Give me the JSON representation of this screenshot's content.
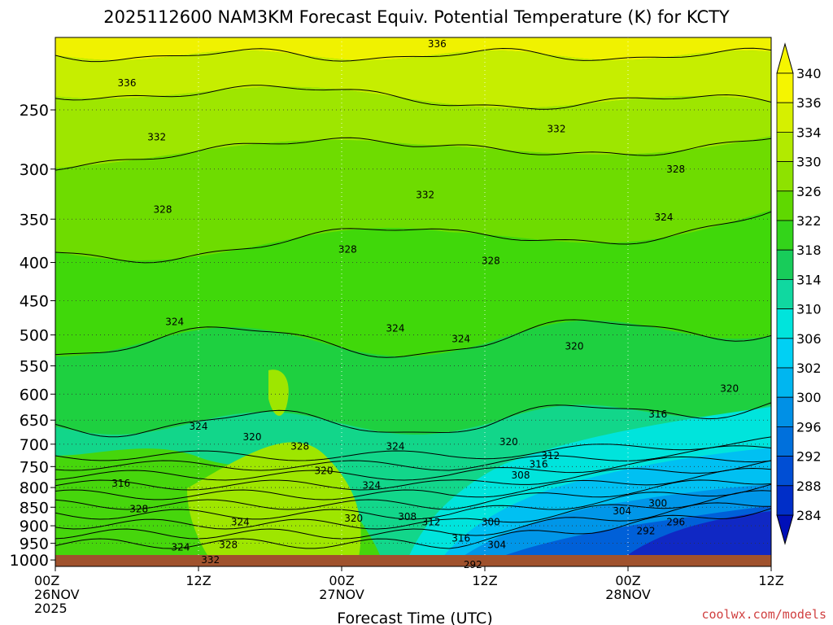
{
  "chart_data": {
    "type": "heatmap",
    "title": "2025112600 NAM3KM Forecast Equiv. Potential Temperature (K) for KCTY",
    "xlabel": "Forecast Time (UTC)",
    "ylabel": "",
    "x_ticks": [
      {
        "value": 0,
        "lines": [
          "00Z",
          "26NOV",
          "2025"
        ]
      },
      {
        "value": 12,
        "lines": [
          "12Z"
        ]
      },
      {
        "value": 24,
        "lines": [
          "00Z",
          "27NOV"
        ]
      },
      {
        "value": 36,
        "lines": [
          "12Z"
        ]
      },
      {
        "value": 48,
        "lines": [
          "00Z",
          "28NOV"
        ]
      },
      {
        "value": 60,
        "lines": [
          "12Z"
        ]
      }
    ],
    "xlim": [
      0,
      60
    ],
    "y_ticks": [
      250,
      300,
      350,
      400,
      450,
      500,
      550,
      600,
      650,
      700,
      750,
      800,
      850,
      900,
      950,
      1000
    ],
    "ylim": [
      200,
      1020
    ],
    "y_scale": "log-pressure",
    "grid": true,
    "colorbar": {
      "labels": [
        "340",
        "336",
        "334",
        "330",
        "326",
        "322",
        "318",
        "314",
        "310",
        "306",
        "302",
        "300",
        "296",
        "292",
        "288",
        "284"
      ],
      "colors": [
        "#f5f500",
        "#d6f000",
        "#b2ea00",
        "#8ee200",
        "#5fd800",
        "#33d41a",
        "#18cc5a",
        "#10d8a0",
        "#00e4dc",
        "#00d0f4",
        "#00b6f0",
        "#0090e6",
        "#0070dc",
        "#004ed4",
        "#002ec8",
        "#0010b8"
      ],
      "extend": "both"
    },
    "contour_labels": [
      {
        "t": 32,
        "p": 204,
        "text": "336"
      },
      {
        "t": 6,
        "p": 230,
        "text": "336"
      },
      {
        "t": 8.5,
        "p": 272,
        "text": "332"
      },
      {
        "t": 42,
        "p": 265,
        "text": "332"
      },
      {
        "t": 31,
        "p": 325,
        "text": "332"
      },
      {
        "t": 52,
        "p": 300,
        "text": "328"
      },
      {
        "t": 9,
        "p": 340,
        "text": "328"
      },
      {
        "t": 24.5,
        "p": 384,
        "text": "328"
      },
      {
        "t": 36.5,
        "p": 398,
        "text": "328"
      },
      {
        "t": 51,
        "p": 348,
        "text": "324"
      },
      {
        "t": 10,
        "p": 480,
        "text": "324"
      },
      {
        "t": 28.5,
        "p": 490,
        "text": "324"
      },
      {
        "t": 34,
        "p": 506,
        "text": "324"
      },
      {
        "t": 43.5,
        "p": 518,
        "text": "320"
      },
      {
        "t": 56.5,
        "p": 590,
        "text": "320"
      },
      {
        "t": 50.5,
        "p": 638,
        "text": "316"
      },
      {
        "t": 12,
        "p": 663,
        "text": "324"
      },
      {
        "t": 16.5,
        "p": 685,
        "text": "320"
      },
      {
        "t": 20.5,
        "p": 705,
        "text": "328"
      },
      {
        "t": 28.5,
        "p": 705,
        "text": "324"
      },
      {
        "t": 38,
        "p": 695,
        "text": "320"
      },
      {
        "t": 41.5,
        "p": 725,
        "text": "312"
      },
      {
        "t": 40.5,
        "p": 745,
        "text": "316"
      },
      {
        "t": 22.5,
        "p": 760,
        "text": "320"
      },
      {
        "t": 39,
        "p": 770,
        "text": "308"
      },
      {
        "t": 5.5,
        "p": 790,
        "text": "316"
      },
      {
        "t": 26.5,
        "p": 795,
        "text": "324"
      },
      {
        "t": 7,
        "p": 855,
        "text": "328"
      },
      {
        "t": 15.5,
        "p": 890,
        "text": "324"
      },
      {
        "t": 25,
        "p": 880,
        "text": "320"
      },
      {
        "t": 29.5,
        "p": 875,
        "text": "308"
      },
      {
        "t": 31.5,
        "p": 890,
        "text": "312"
      },
      {
        "t": 47.5,
        "p": 860,
        "text": "304"
      },
      {
        "t": 50.5,
        "p": 840,
        "text": "300"
      },
      {
        "t": 36.5,
        "p": 890,
        "text": "300"
      },
      {
        "t": 52,
        "p": 890,
        "text": "296"
      },
      {
        "t": 49.5,
        "p": 915,
        "text": "292"
      },
      {
        "t": 34,
        "p": 935,
        "text": "316"
      },
      {
        "t": 37,
        "p": 955,
        "text": "304"
      },
      {
        "t": 10.5,
        "p": 962,
        "text": "324"
      },
      {
        "t": 14.5,
        "p": 955,
        "text": "328"
      },
      {
        "t": 13,
        "p": 1000,
        "text": "332"
      },
      {
        "t": 35,
        "p": 1015,
        "text": "292"
      }
    ]
  },
  "credit": "coolwx.com/models"
}
